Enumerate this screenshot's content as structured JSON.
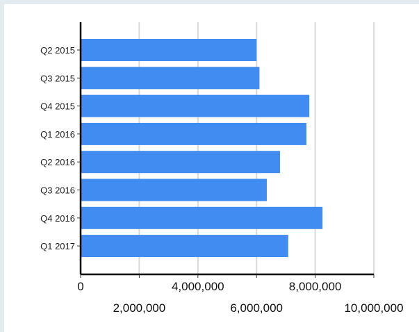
{
  "chart_data": {
    "type": "bar",
    "orientation": "horizontal",
    "title": "",
    "xlabel": "",
    "ylabel": "",
    "categories": [
      "Q2 2015",
      "Q3 2015",
      "Q4 2015",
      "Q1 2016",
      "Q2 2016",
      "Q3 2016",
      "Q4 2016",
      "Q1 2017"
    ],
    "values": [
      6000000,
      6100000,
      7800000,
      7700000,
      6800000,
      6350000,
      8250000,
      7080000
    ],
    "xlim": [
      0,
      10000000
    ],
    "x_ticks": [
      0,
      2000000,
      4000000,
      6000000,
      8000000,
      10000000
    ],
    "x_tick_labels": [
      "0",
      "2,000,000",
      "4,000,000",
      "6,000,000",
      "8,000,000",
      "10,000,000"
    ],
    "grid": "vertical",
    "legend": "none",
    "bar_color": "#418cf0",
    "grid_color": "#d9d9d9",
    "axis_color": "#000000"
  }
}
